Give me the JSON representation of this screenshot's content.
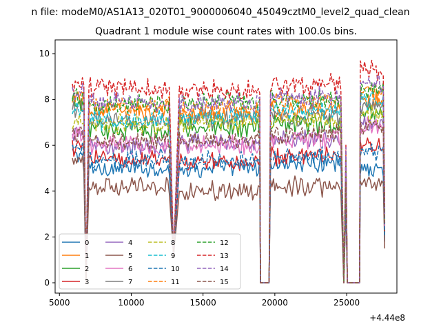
{
  "figure": {
    "suptitle": "n file: modeM0/AS1A13_020T01_9000006040_45049cztM0_level2_quad_clean",
    "title": "Quadrant 1 module wise count rates with 100.0s bins.",
    "offset_label": "+4.44e8"
  },
  "chart_data": {
    "type": "line",
    "title": "Quadrant 1 module wise count rates with 100.0s bins.",
    "xlabel": "",
    "ylabel": "",
    "xlim": [
      4700,
      28500
    ],
    "ylim": [
      -0.45,
      10.6
    ],
    "x_offset": 444000000,
    "x_ticks": [
      5000,
      10000,
      15000,
      20000,
      25000
    ],
    "x_tick_labels": [
      "5000",
      "10000",
      "15000",
      "20000",
      "25000"
    ],
    "y_ticks": [
      0,
      2,
      4,
      6,
      8,
      10
    ],
    "y_tick_labels": [
      "0",
      "2",
      "4",
      "6",
      "8",
      "10"
    ],
    "grid": false,
    "legend_position": "lower-left",
    "legend_columns": 4,
    "active_segments": [
      [
        5900,
        6700
      ],
      [
        7050,
        12700
      ],
      [
        13350,
        18950
      ],
      [
        19700,
        24600
      ],
      [
        25950,
        27600
      ]
    ],
    "dropouts": [
      {
        "x": 6850,
        "value": 0
      },
      {
        "x": 12950,
        "value": 0.8
      },
      {
        "x": 24800,
        "value": 0
      }
    ],
    "zero_plateaus": [
      [
        19000,
        19600
      ],
      [
        25000,
        25900
      ]
    ],
    "series": [
      {
        "name": "0",
        "color": "#1f77b4",
        "dash": "solid",
        "segment_means": [
          5.6,
          5.0,
          5.0,
          5.2,
          5.0
        ],
        "amplitude": 0.25,
        "end_value": 1.8
      },
      {
        "name": "1",
        "color": "#ff7f0e",
        "dash": "solid",
        "segment_means": [
          8.0,
          7.5,
          7.4,
          7.6,
          8.0
        ],
        "amplitude": 0.3,
        "end_value": 2.5
      },
      {
        "name": "2",
        "color": "#2ca02c",
        "dash": "solid",
        "segment_means": [
          7.8,
          6.7,
          6.8,
          6.9,
          7.5
        ],
        "amplitude": 0.35,
        "end_value": 3.2
      },
      {
        "name": "3",
        "color": "#d62728",
        "dash": "solid",
        "segment_means": [
          5.9,
          5.4,
          5.3,
          5.5,
          6.0
        ],
        "amplitude": 0.3,
        "end_value": 2.2
      },
      {
        "name": "4",
        "color": "#9467bd",
        "dash": "solid",
        "segment_means": [
          6.4,
          6.0,
          6.1,
          6.3,
          7.0
        ],
        "amplitude": 0.3,
        "end_value": 2.6
      },
      {
        "name": "5",
        "color": "#8c564b",
        "dash": "solid",
        "segment_means": [
          5.2,
          4.2,
          4.0,
          4.2,
          4.4
        ],
        "amplitude": 0.3,
        "end_value": 1.5
      },
      {
        "name": "6",
        "color": "#e377c2",
        "dash": "solid",
        "segment_means": [
          6.5,
          6.0,
          6.0,
          6.3,
          6.8
        ],
        "amplitude": 0.3,
        "end_value": 2.4
      },
      {
        "name": "7",
        "color": "#7f7f7f",
        "dash": "solid",
        "segment_means": [
          7.6,
          7.0,
          7.2,
          7.3,
          7.8
        ],
        "amplitude": 0.3,
        "end_value": 2.8
      },
      {
        "name": "8",
        "color": "#bcbd22",
        "dash": "dashed",
        "segment_means": [
          7.0,
          6.9,
          7.0,
          7.1,
          7.4
        ],
        "amplitude": 0.3,
        "end_value": 2.7
      },
      {
        "name": "9",
        "color": "#17becf",
        "dash": "dashed",
        "segment_means": [
          7.5,
          7.1,
          7.3,
          7.5,
          8.0
        ],
        "amplitude": 0.3,
        "end_value": 2.9
      },
      {
        "name": "10",
        "color": "#1f77b4",
        "dash": "dashed",
        "segment_means": [
          6.0,
          5.4,
          5.3,
          5.5,
          5.7
        ],
        "amplitude": 0.3,
        "end_value": 2.0
      },
      {
        "name": "11",
        "color": "#ff7f0e",
        "dash": "dashed",
        "segment_means": [
          8.1,
          7.7,
          7.6,
          7.9,
          8.3
        ],
        "amplitude": 0.3,
        "end_value": 3.0
      },
      {
        "name": "12",
        "color": "#2ca02c",
        "dash": "dashed",
        "segment_means": [
          8.0,
          7.8,
          7.9,
          8.0,
          8.4
        ],
        "amplitude": 0.3,
        "end_value": 3.1
      },
      {
        "name": "13",
        "color": "#d62728",
        "dash": "dashed",
        "segment_means": [
          8.6,
          8.5,
          8.4,
          8.6,
          9.3
        ],
        "amplitude": 0.35,
        "end_value": 3.3
      },
      {
        "name": "14",
        "color": "#9467bd",
        "dash": "dashed",
        "segment_means": [
          8.3,
          7.9,
          7.8,
          8.1,
          8.7
        ],
        "amplitude": 0.3,
        "end_value": 3.0
      },
      {
        "name": "15",
        "color": "#8c564b",
        "dash": "dashed",
        "segment_means": [
          6.6,
          6.2,
          6.2,
          6.5,
          6.9
        ],
        "amplitude": 0.3,
        "end_value": 2.6
      }
    ]
  }
}
